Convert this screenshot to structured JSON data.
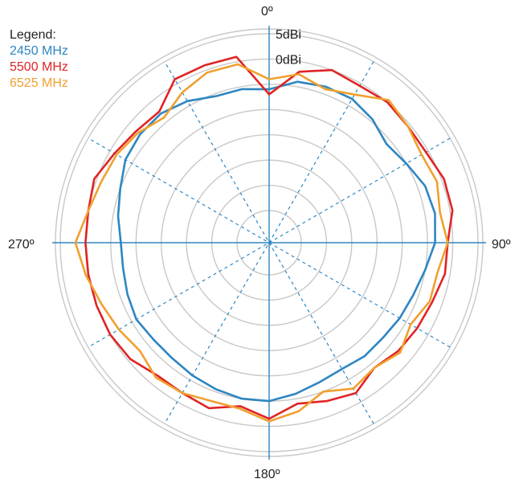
{
  "chart_data": {
    "type": "polar-line",
    "angle_labels": {
      "top": "0º",
      "right": "90º",
      "bottom": "180º",
      "left": "270º"
    },
    "radial_labels": [
      {
        "text": "5dBi",
        "value": 5
      },
      {
        "text": "0dBi",
        "value": 0
      }
    ],
    "radial_range": [
      -30,
      5
    ],
    "radial_ring_values": [
      5,
      0,
      -5,
      -10,
      -15,
      -20,
      -25
    ],
    "grid": true,
    "legend_position": "top-left",
    "legend_title": "Legend:",
    "series": [
      {
        "name": "2450 MHz",
        "color": "#2e86c1",
        "angles": [
          0,
          10,
          20,
          30,
          40,
          50,
          60,
          70,
          80,
          90,
          100,
          110,
          120,
          130,
          140,
          150,
          160,
          170,
          180,
          190,
          200,
          210,
          220,
          230,
          240,
          250,
          260,
          270,
          280,
          290,
          300,
          310,
          320,
          330,
          340,
          350
        ],
        "values": [
          -6,
          -4,
          -3.5,
          -3.5,
          -4.5,
          -6,
          -5,
          -3.5,
          -3,
          -3.5,
          -5,
          -6,
          -6.5,
          -7,
          -7,
          -7.5,
          -7,
          -6,
          -5,
          -5,
          -5.5,
          -6,
          -6.5,
          -6.5,
          -6,
          -6.5,
          -7,
          -7,
          -6,
          -5,
          -3.5,
          -3,
          -3,
          -4,
          -5.5,
          -5.5
        ]
      },
      {
        "name": "5500 MHz",
        "color": "#e02424",
        "angles": [
          0,
          10,
          20,
          30,
          40,
          50,
          60,
          70,
          80,
          90,
          100,
          110,
          120,
          130,
          140,
          150,
          160,
          170,
          180,
          190,
          200,
          210,
          220,
          230,
          240,
          250,
          260,
          270,
          280,
          290,
          300,
          310,
          320,
          330,
          340,
          350
        ],
        "values": [
          -7,
          -2,
          0,
          -0.5,
          0,
          -0.5,
          -0.5,
          0.5,
          0.5,
          -1,
          -1,
          -2,
          -2.5,
          -3,
          -4,
          -2,
          -3,
          -4,
          -1.5,
          -3.5,
          -1.5,
          -2,
          -2,
          -0.5,
          0,
          0,
          0,
          0,
          0,
          0.5,
          -1,
          -2,
          -2.5,
          1,
          1,
          1
        ]
      },
      {
        "name": "6525 MHz",
        "color": "#f0a030",
        "angles": [
          0,
          10,
          20,
          30,
          40,
          50,
          60,
          70,
          80,
          90,
          100,
          110,
          120,
          130,
          140,
          150,
          160,
          170,
          180,
          190,
          200,
          210,
          220,
          230,
          240,
          250,
          260,
          270,
          280,
          290,
          300,
          310,
          320,
          330,
          340,
          350
        ],
        "values": [
          -4,
          -2.5,
          -4,
          -2.5,
          0.5,
          -0.5,
          -1.5,
          -1,
          -2,
          -1,
          -2.5,
          -2.5,
          -4,
          -2.5,
          -4,
          -3,
          -5,
          -2.5,
          -1,
          -3,
          -3,
          -2,
          -1.5,
          -3,
          -2,
          -1,
          0.5,
          2,
          0,
          -1,
          -1.5,
          -2.5,
          -4,
          -2,
          -0.5,
          -0.5
        ]
      }
    ]
  }
}
